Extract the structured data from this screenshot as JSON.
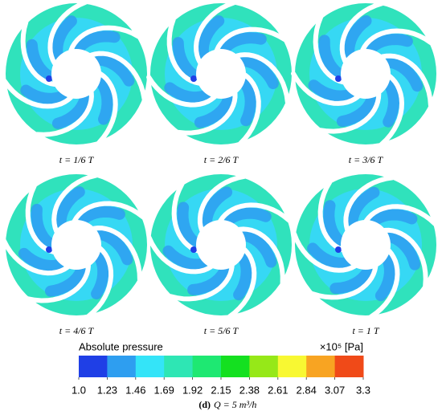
{
  "panels": [
    {
      "label": "t = 1/6 T"
    },
    {
      "label": "t = 2/6 T"
    },
    {
      "label": "t = 3/6 T"
    },
    {
      "label": "t = 4/6 T"
    },
    {
      "label": "t = 5/6 T"
    },
    {
      "label": "t = 1 T"
    }
  ],
  "colorbar": {
    "title": "Absolute pressure",
    "unit": "×10⁵ [Pa]",
    "colors": [
      "#1f3fe6",
      "#2e9ef0",
      "#34e4f8",
      "#2ee6b4",
      "#1ee872",
      "#14e020",
      "#96e818",
      "#f8f832",
      "#f8a422",
      "#f04a18"
    ],
    "ticks": [
      {
        "value": 1,
        "label": "1.0"
      },
      1.23,
      1.46,
      1.69,
      1.92,
      2.15,
      2.38,
      2.61,
      2.84,
      3.07,
      3.3
    ]
  },
  "caption": {
    "tag": "(d)",
    "text": "Q = 5 m³/h"
  }
}
